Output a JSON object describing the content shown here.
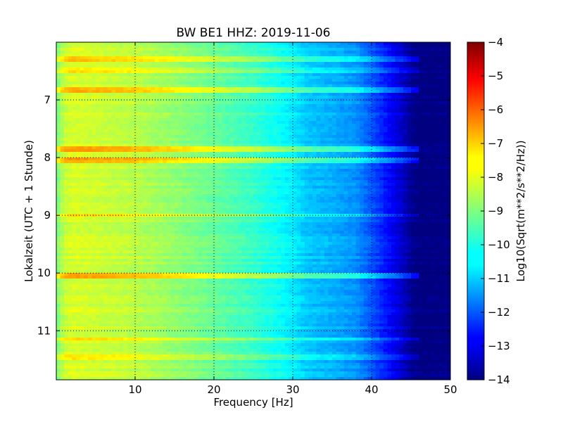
{
  "chart_data": {
    "type": "heatmap",
    "title": "BW BE1 HHZ: 2019-11-06",
    "xlabel": "Frequency [Hz]",
    "ylabel": "Lokalzeit (UTC + 1 Stunde)",
    "xlim": [
      0,
      50
    ],
    "ylim": [
      6.0,
      11.85
    ],
    "y_inverted": true,
    "x_ticks": [
      10,
      20,
      30,
      40,
      50
    ],
    "y_ticks": [
      7,
      8,
      9,
      10,
      11
    ],
    "grid": true,
    "colormap": "jet",
    "colorbar": {
      "label": "Log10(Sqrt(m**2/s**2/Hz))",
      "range": [
        -14,
        -4
      ],
      "ticks": [
        -4,
        -5,
        -6,
        -7,
        -8,
        -9,
        -10,
        -11,
        -12,
        -13,
        -14
      ]
    },
    "spectral_profile": {
      "frequency_hz": [
        0,
        1,
        2,
        5,
        10,
        15,
        20,
        25,
        28,
        30,
        32,
        35,
        38,
        40,
        42,
        44,
        45,
        46,
        50
      ],
      "log_amplitude": [
        -9.1,
        -8.3,
        -8.1,
        -8.2,
        -8.4,
        -8.8,
        -9.2,
        -9.7,
        -10.1,
        -10.4,
        -10.8,
        -11.0,
        -11.3,
        -11.9,
        -12.6,
        -13.3,
        -13.8,
        -14.0,
        -14.0
      ]
    },
    "bright_bands": [
      {
        "time": 6.3,
        "log_amplitude_offset": 1.0
      },
      {
        "time": 6.48,
        "log_amplitude_offset": 0.6
      },
      {
        "time": 6.82,
        "log_amplitude_offset": 1.2
      },
      {
        "time": 7.85,
        "log_amplitude_offset": 1.3
      },
      {
        "time": 8.05,
        "log_amplitude_offset": 1.3
      },
      {
        "time": 9.0,
        "log_amplitude_offset": 0.6
      },
      {
        "time": 10.05,
        "log_amplitude_offset": 1.3
      },
      {
        "time": 11.15,
        "log_amplitude_offset": 0.8
      },
      {
        "time": 11.45,
        "log_amplitude_offset": 0.5
      }
    ]
  }
}
